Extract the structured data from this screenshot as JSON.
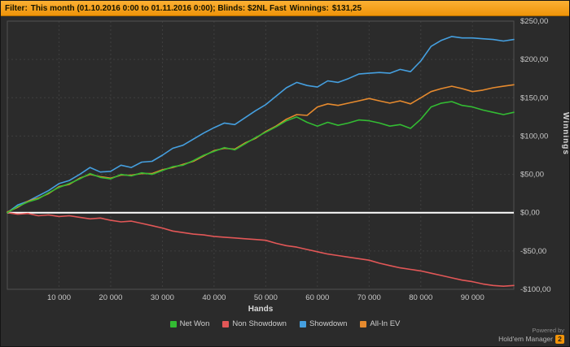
{
  "filter_bar": {
    "filter_label": "Filter:",
    "filter_value": "This month (01.10.2016 0:00 to 01.11.2016 0:00); Blinds: $2NL Fast",
    "winnings_label": "Winnings:",
    "winnings_value": "$131,25"
  },
  "footer": {
    "powered_by": "Powered by",
    "brand": "Hold'em Manager",
    "badge": "2"
  },
  "colors": {
    "top_bar_start": "#fbb034",
    "top_bar_end": "#ef9409",
    "background": "#2b2b2b",
    "grid": "#3f3f3f",
    "plot_border": "#505050",
    "zero_line": "#ffffff",
    "tick_text": "#c8c8c8"
  },
  "chart_data": {
    "type": "line",
    "title": "",
    "xlabel": "Hands",
    "ylabel": "Winnings",
    "xlim": [
      0,
      98000
    ],
    "ylim": [
      -100,
      250
    ],
    "grid": true,
    "legend_position": "bottom",
    "zero_line_at": 0,
    "x_ticks": [
      10000,
      20000,
      30000,
      40000,
      50000,
      60000,
      70000,
      80000,
      90000
    ],
    "x_tick_labels": [
      "10 000",
      "20 000",
      "30 000",
      "40 000",
      "50 000",
      "60 000",
      "70 000",
      "80 000",
      "90 000"
    ],
    "y_ticks": [
      250,
      200,
      150,
      100,
      50,
      0,
      -50,
      -100
    ],
    "y_tick_labels": [
      "$250,00",
      "$200,00",
      "$150,00",
      "$100,00",
      "$50,00",
      "$0,00",
      "-$50,00",
      "-$100,00"
    ],
    "x": [
      0,
      2000,
      4000,
      6000,
      8000,
      10000,
      12000,
      14000,
      16000,
      18000,
      20000,
      22000,
      24000,
      26000,
      28000,
      30000,
      32000,
      34000,
      36000,
      38000,
      40000,
      42000,
      44000,
      46000,
      48000,
      50000,
      52000,
      54000,
      56000,
      58000,
      60000,
      62000,
      64000,
      66000,
      68000,
      70000,
      72000,
      74000,
      76000,
      78000,
      80000,
      82000,
      84000,
      86000,
      88000,
      90000,
      92000,
      94000,
      96000,
      98000
    ],
    "draw_order": [
      1,
      2,
      3,
      0
    ],
    "series": [
      {
        "name": "Net Won",
        "color": "#33bb33",
        "y": [
          0,
          8,
          14,
          18,
          26,
          33,
          38,
          44,
          51,
          46,
          44,
          50,
          48,
          52,
          50,
          55,
          60,
          62,
          68,
          75,
          80,
          85,
          82,
          90,
          98,
          105,
          112,
          120,
          125,
          118,
          113,
          118,
          114,
          117,
          121,
          120,
          117,
          113,
          115,
          110,
          122,
          138,
          143,
          145,
          140,
          138,
          134,
          131,
          128,
          131
        ]
      },
      {
        "name": "Non Showdown",
        "color": "#e25757",
        "y": [
          0,
          -2,
          -1,
          -4,
          -3,
          -5,
          -4,
          -6,
          -8,
          -7,
          -10,
          -12,
          -11,
          -14,
          -17,
          -20,
          -24,
          -26,
          -28,
          -29,
          -31,
          -32,
          -33,
          -34,
          -35,
          -36,
          -40,
          -43,
          -45,
          -48,
          -51,
          -54,
          -56,
          -58,
          -60,
          -62,
          -66,
          -69,
          -72,
          -74,
          -76,
          -79,
          -82,
          -85,
          -88,
          -90,
          -93,
          -95,
          -96,
          -95
        ]
      },
      {
        "name": "Showdown",
        "color": "#459fdf",
        "y": [
          0,
          10,
          15,
          22,
          29,
          38,
          42,
          50,
          59,
          53,
          54,
          62,
          59,
          66,
          67,
          75,
          84,
          88,
          96,
          104,
          111,
          117,
          115,
          124,
          133,
          141,
          152,
          163,
          170,
          166,
          164,
          172,
          170,
          175,
          181,
          182,
          183,
          182,
          187,
          184,
          198,
          217,
          225,
          230,
          228,
          228,
          227,
          226,
          224,
          226
        ]
      },
      {
        "name": "All-In EV",
        "color": "#e68a2e",
        "y": [
          1,
          7,
          15,
          19,
          25,
          34,
          37,
          45,
          50,
          47,
          45,
          49,
          49,
          51,
          51,
          56,
          59,
          63,
          67,
          74,
          81,
          84,
          83,
          91,
          97,
          106,
          113,
          122,
          128,
          127,
          138,
          142,
          140,
          143,
          146,
          149,
          146,
          143,
          146,
          142,
          150,
          158,
          162,
          165,
          162,
          158,
          160,
          163,
          165,
          167
        ]
      }
    ]
  }
}
